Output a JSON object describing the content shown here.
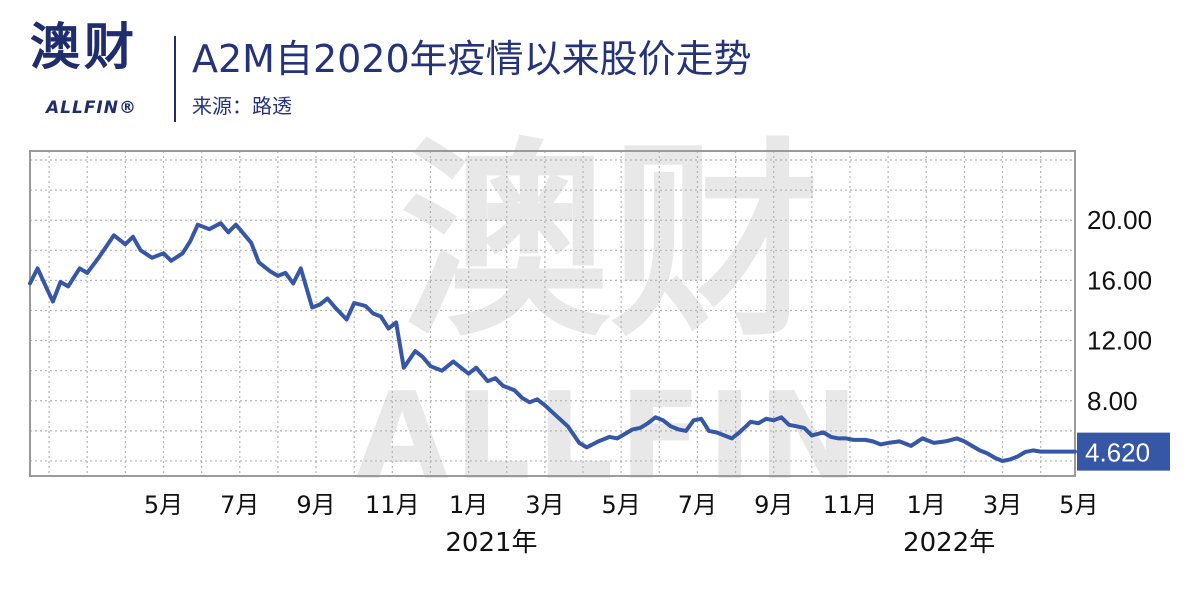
{
  "logo": {
    "cn": "澳财",
    "en": "ALLFIN®"
  },
  "header": {
    "title": "A2M自2020年疫情以来股价走势",
    "source": "来源：路透"
  },
  "watermark": {
    "cn": "澳财",
    "en": "ALLFIN"
  },
  "colors": {
    "line": "#3656a6",
    "grid": "#b5b5b5",
    "frame": "#9a9a9a",
    "label_bg": "#3656a6",
    "brand": "#1f2d6e"
  },
  "chart_data": {
    "type": "line",
    "title": "A2M自2020年疫情以来股价走势",
    "xlabel": "",
    "ylabel": "",
    "ylim": [
      3.0,
      24.6
    ],
    "yticks": [
      20.0,
      16.0,
      12.0,
      8.0
    ],
    "ytick_labels": [
      "20.00",
      "16.00",
      "12.00",
      "8.00"
    ],
    "x_range_months": [
      0.5,
      27.9
    ],
    "xticks": [
      {
        "m": 4,
        "label": "5月"
      },
      {
        "m": 6,
        "label": "7月"
      },
      {
        "m": 8,
        "label": "9月"
      },
      {
        "m": 10,
        "label": "11月"
      },
      {
        "m": 12,
        "label": "1月"
      },
      {
        "m": 14,
        "label": "3月"
      },
      {
        "m": 16,
        "label": "5月"
      },
      {
        "m": 18,
        "label": "7月"
      },
      {
        "m": 20,
        "label": "9月"
      },
      {
        "m": 22,
        "label": "11月"
      },
      {
        "m": 24,
        "label": "1月"
      },
      {
        "m": 26,
        "label": "3月"
      },
      {
        "m": 28,
        "label": "5月"
      }
    ],
    "year_labels": [
      {
        "m": 12.6,
        "label": "2021年"
      },
      {
        "m": 24.6,
        "label": "2022年"
      }
    ],
    "last_value_label": "4.620",
    "grid": true,
    "series": [
      {
        "x": [
          0.5,
          0.7,
          0.95,
          1.1,
          1.3,
          1.5,
          1.8,
          2.0,
          2.3,
          2.7,
          3.0,
          3.2,
          3.4,
          3.7,
          4.0,
          4.2,
          4.5,
          4.7,
          4.9,
          5.2,
          5.5,
          5.7,
          5.9,
          6.0,
          6.3,
          6.5,
          6.8,
          7.0,
          7.2,
          7.4,
          7.6,
          7.9,
          8.1,
          8.3,
          8.5,
          8.8,
          9.0,
          9.3,
          9.5,
          9.7,
          9.9,
          10.1,
          10.3,
          10.6,
          10.8,
          11.0,
          11.3,
          11.6,
          11.8,
          12.0,
          12.2,
          12.5,
          12.7,
          12.9,
          13.2,
          13.4,
          13.6,
          13.8,
          14.0,
          14.3,
          14.6,
          14.9,
          15.1,
          15.4,
          15.7,
          15.9,
          16.1,
          16.3,
          16.5,
          16.7,
          16.9,
          17.1,
          17.3,
          17.5,
          17.7,
          17.9,
          18.1,
          18.3,
          18.5,
          18.7,
          18.9,
          19.1,
          19.4,
          19.6,
          19.8,
          20.0,
          20.2,
          20.4,
          20.6,
          20.8,
          21.0,
          21.3,
          21.5,
          21.7,
          21.9,
          22.1,
          22.4,
          22.6,
          22.8,
          23.0,
          23.3,
          23.6,
          23.9,
          24.2,
          24.5,
          24.8,
          25.0,
          25.2,
          25.4,
          25.6,
          25.8,
          26.0,
          26.2,
          26.4,
          26.6,
          26.8,
          27.0,
          27.2,
          27.4,
          27.6,
          27.75,
          27.9
        ],
        "y": [
          15.8,
          16.8,
          15.4,
          14.6,
          15.9,
          15.6,
          16.8,
          16.5,
          17.5,
          19.0,
          18.4,
          18.9,
          18.0,
          17.5,
          17.8,
          17.3,
          17.8,
          18.6,
          19.7,
          19.4,
          19.8,
          19.2,
          19.7,
          19.4,
          18.5,
          17.2,
          16.6,
          16.3,
          16.5,
          15.8,
          16.8,
          14.2,
          14.4,
          14.8,
          14.2,
          13.4,
          14.5,
          14.3,
          13.8,
          13.6,
          12.8,
          13.2,
          10.2,
          11.3,
          10.9,
          10.3,
          10.0,
          10.6,
          10.2,
          9.8,
          10.2,
          9.3,
          9.5,
          9.0,
          8.7,
          8.2,
          7.9,
          8.1,
          7.7,
          7.0,
          6.3,
          5.2,
          4.9,
          5.3,
          5.6,
          5.5,
          5.8,
          6.1,
          6.2,
          6.5,
          6.9,
          6.7,
          6.3,
          6.1,
          6.0,
          6.7,
          6.8,
          6.0,
          5.9,
          5.7,
          5.5,
          5.9,
          6.6,
          6.5,
          6.8,
          6.7,
          6.9,
          6.4,
          6.3,
          6.2,
          5.7,
          5.9,
          5.6,
          5.5,
          5.5,
          5.4,
          5.4,
          5.3,
          5.1,
          5.2,
          5.3,
          5.0,
          5.5,
          5.2,
          5.3,
          5.5,
          5.3,
          5.0,
          4.7,
          4.5,
          4.2,
          4.0,
          4.1,
          4.3,
          4.6,
          4.7,
          4.62,
          4.62,
          4.62,
          4.62,
          4.62,
          4.62
        ]
      }
    ]
  }
}
